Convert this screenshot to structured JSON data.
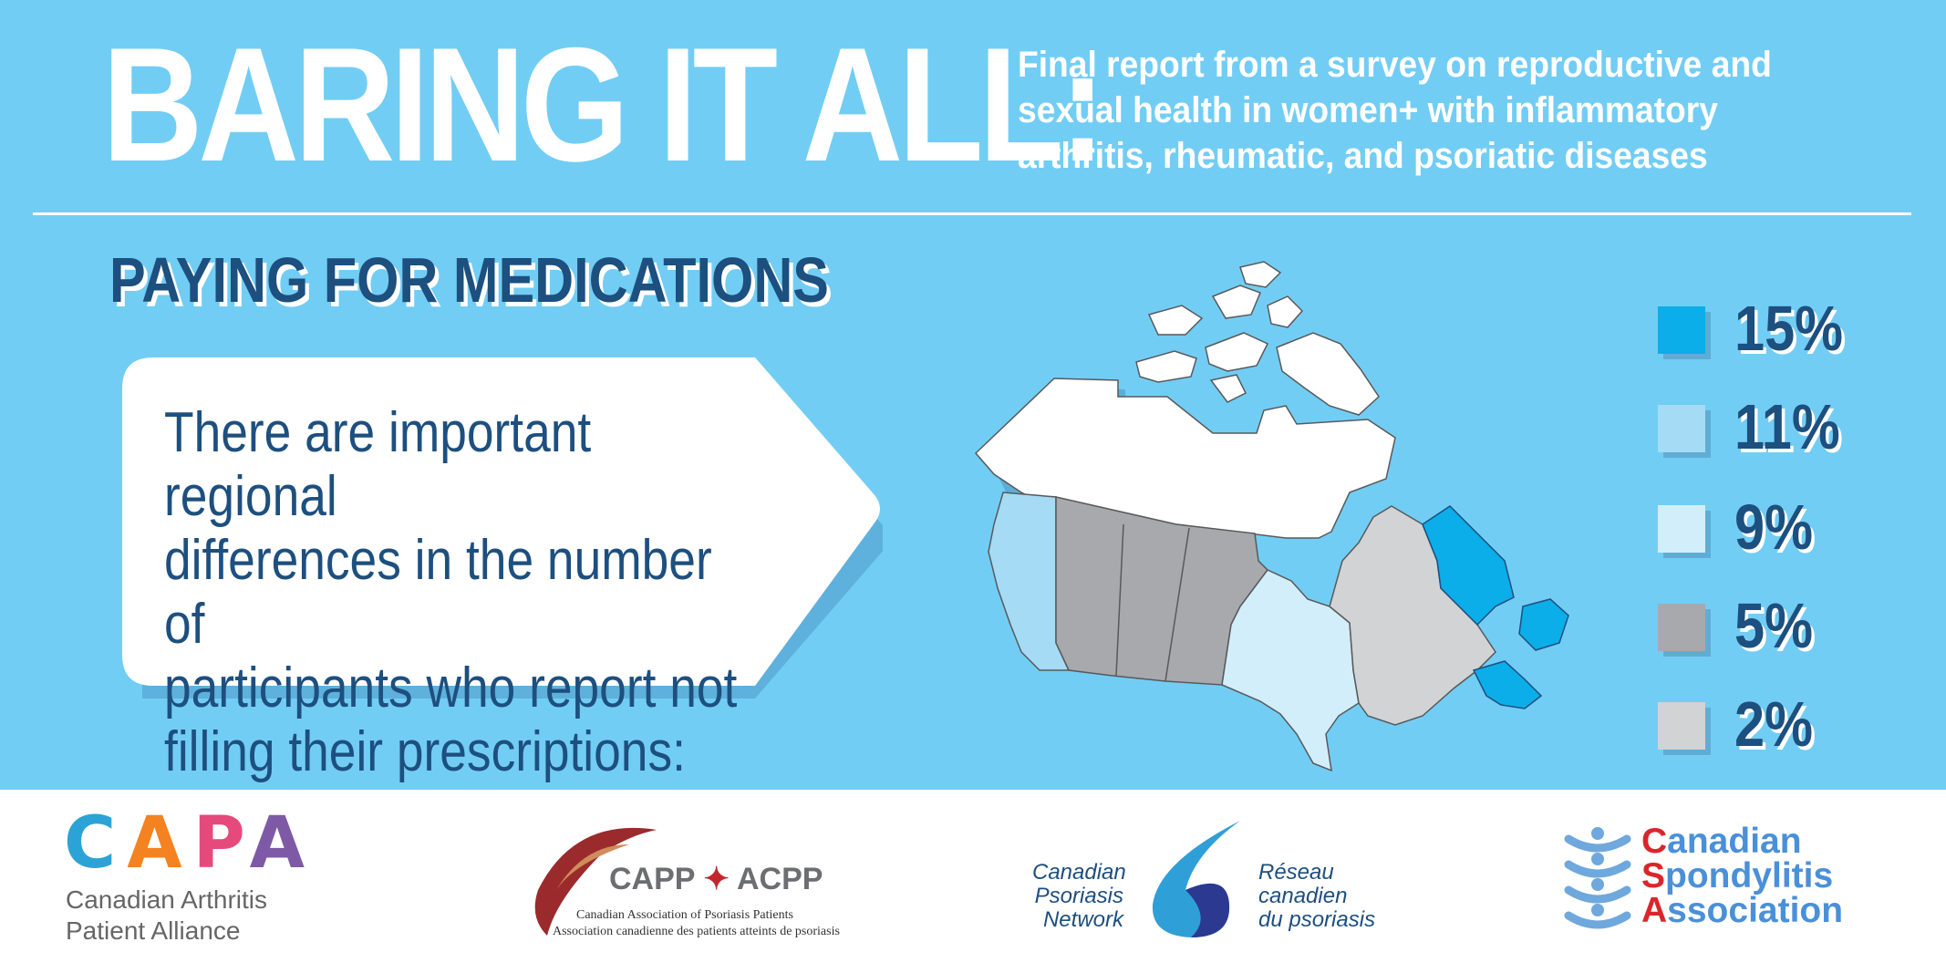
{
  "header": {
    "title": "BARING IT ALL:",
    "subtitle_lines": [
      "Final report from a survey on reproductive and",
      "sexual health in women+ with inflammatory",
      "arthritis, rheumatic, and psoriatic diseases"
    ]
  },
  "section": {
    "title": "PAYING FOR MEDICATIONS"
  },
  "callout": {
    "lines": [
      "There are important regional",
      "differences in the number of",
      "participants who report not",
      "filling their prescriptions:"
    ]
  },
  "legend": [
    {
      "value": "15%",
      "color": "#0baee9"
    },
    {
      "value": "11%",
      "color": "#a5dbf4"
    },
    {
      "value": "9%",
      "color": "#d3eefb"
    },
    {
      "value": "5%",
      "color": "#a7a9ac"
    },
    {
      "value": "2%",
      "color": "#d1d3d4"
    }
  ],
  "map_regions": {
    "british_columbia": "11%",
    "prairies": "5%",
    "ontario": "9%",
    "quebec": "2%",
    "atlantic": "15%",
    "territories": "no data"
  },
  "logos": {
    "capa": {
      "letters": [
        "C",
        "A",
        "P",
        "A"
      ],
      "letter_colors": [
        "#2ba3d6",
        "#f58220",
        "#e6497b",
        "#7e5aa6"
      ],
      "subtitle_lines": [
        "Canadian Arthritis",
        "Patient Alliance"
      ]
    },
    "capp": {
      "left": "CAPP",
      "right": "ACPP",
      "english": "Canadian Association of Psoriasis Patients",
      "french": "Association canadienne des patients atteints de psoriasis"
    },
    "cpn": {
      "left_lines": [
        "Canadian",
        "Psoriasis",
        "Network"
      ],
      "right_lines": [
        "Réseau",
        "canadien",
        "du psoriasis"
      ]
    },
    "csa": {
      "lines": [
        "Canadian",
        "Spondylitis",
        "Association"
      ]
    }
  }
}
